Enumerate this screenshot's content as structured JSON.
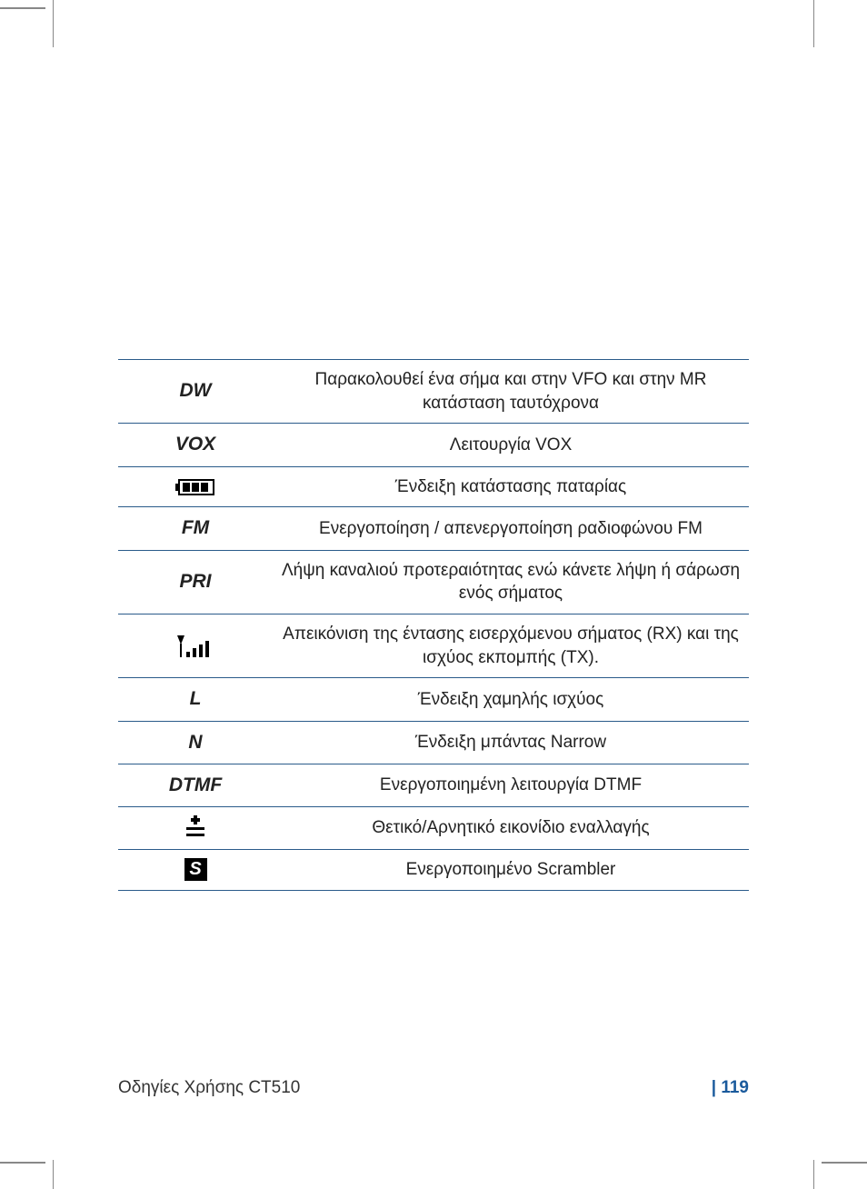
{
  "rows": [
    {
      "symbol_text": "DW",
      "symbol_type": "text",
      "desc": "Παρακολουθεί ένα σήμα και στην VFO και στην MR κατάσταση ταυτόχρονα"
    },
    {
      "symbol_text": "VOX",
      "symbol_type": "text",
      "desc": "Λειτουργία VOX"
    },
    {
      "symbol_text": "",
      "symbol_type": "battery",
      "desc": "Ένδειξη κατάστασης παταρίας"
    },
    {
      "symbol_text": "FM",
      "symbol_type": "text",
      "desc": "Ενεργοποίηση / απενεργοποίηση ραδιοφώνου FM"
    },
    {
      "symbol_text": "PRI",
      "symbol_type": "text",
      "desc": "Λήψη καναλιού προτεραιότητας ενώ κάνετε λήψη ή σάρωση ενός σήματος"
    },
    {
      "symbol_text": "",
      "symbol_type": "antenna",
      "desc": "Απεικόνιση της έντασης εισερχόμενου σήματος (RX) και της ισχύος εκπομπής (TX)."
    },
    {
      "symbol_text": "L",
      "symbol_type": "text",
      "desc": "Ένδειξη χαμηλής ισχύος"
    },
    {
      "symbol_text": "N",
      "symbol_type": "text",
      "desc": "Ένδειξη μπάντας Narrow"
    },
    {
      "symbol_text": "DTMF",
      "symbol_type": "text",
      "desc": "Ενεργοποιημένη λειτουργία DTMF"
    },
    {
      "symbol_text": "",
      "symbol_type": "plusminus",
      "desc": "Θετικό/Αρνητικό εικονίδιο εναλλαγής"
    },
    {
      "symbol_text": "S",
      "symbol_type": "sbox",
      "desc": "Ενεργοποιημένο Scrambler"
    }
  ],
  "footer": {
    "left": "Οδηγίες Χρήσης CT510",
    "pipe": "|",
    "page": "119"
  }
}
